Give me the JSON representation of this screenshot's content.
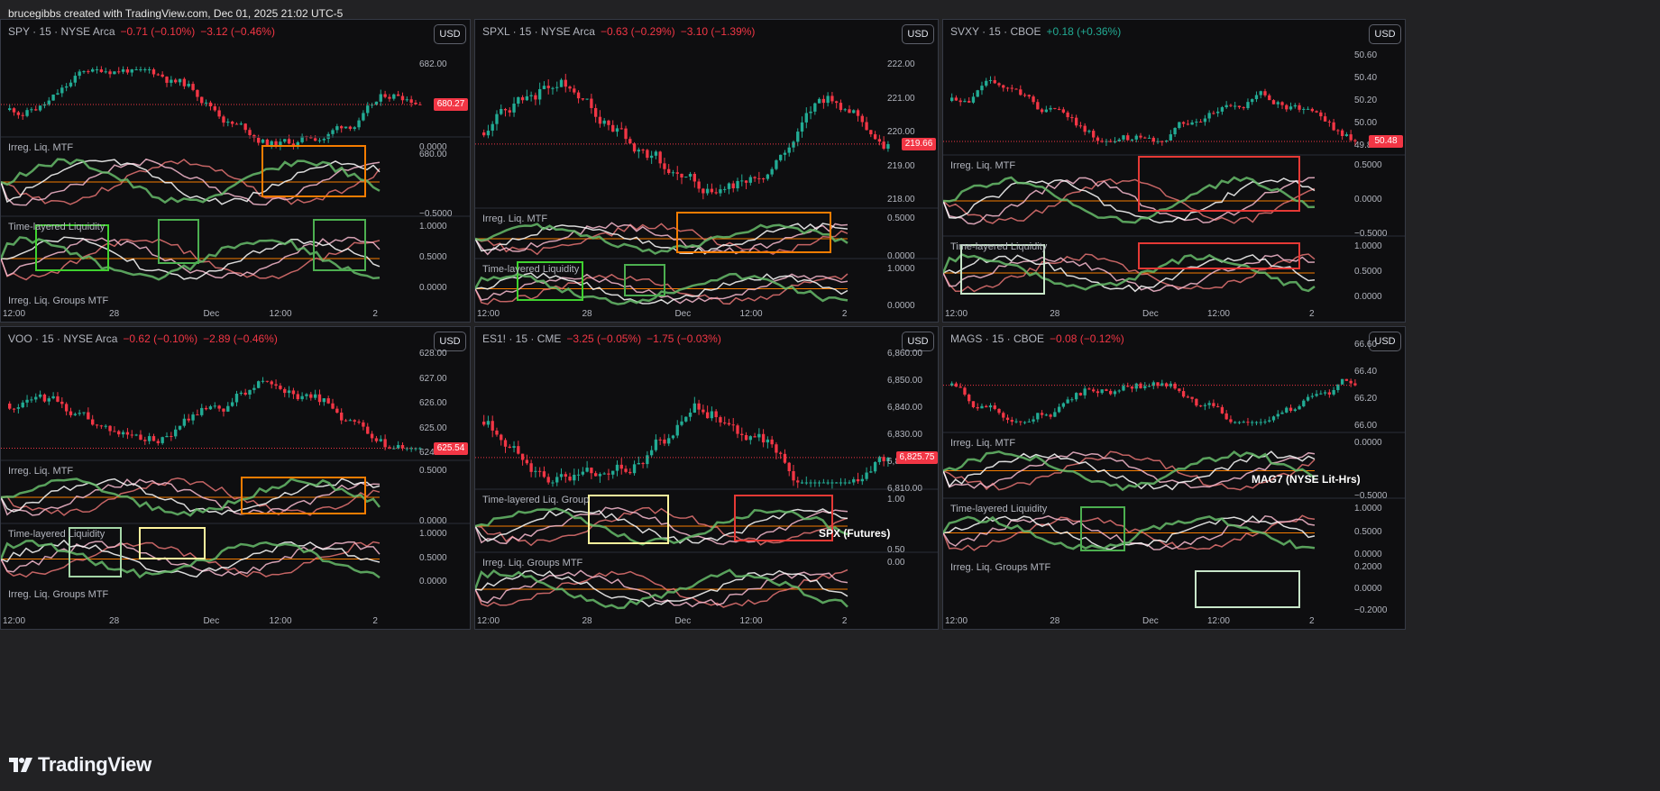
{
  "credit": "brucegibbs created with TradingView.com, Dec 01, 2025 21:02 UTC-5",
  "brand": "TradingView",
  "colors": {
    "down": "#f23645",
    "up": "#22ab94",
    "bg": "#0e0e10",
    "grid": "#2a2e39",
    "green": "#3fd22f",
    "red": "#e53935",
    "orange": "#f57c00",
    "yellow": "#fff59d"
  },
  "currency_label": "USD",
  "panels": [
    {
      "id": "spy",
      "symbol": "SPY · 15 · NYSE Arca",
      "chg1": "−0.71 (−0.10%)",
      "chg2": "−3.12 (−0.46%)",
      "chg1_sign": "neg",
      "chg2_sign": "neg",
      "price_label": "680.27",
      "price_color": "#f23645",
      "price_ticks": [
        "682.00",
        "680.00"
      ],
      "ind_labels": [
        "Irreg. Liq. MTF",
        "Time-layered Liquidity",
        "Irreg. Liq. Groups MTF"
      ],
      "ind_ticks": [
        [
          "0.0000",
          "−0.5000"
        ],
        [
          "1.0000",
          "0.5000",
          "0.0000"
        ]
      ],
      "annotation": "",
      "x_ticks": [
        "12:00",
        "28",
        "Dec",
        "12:00",
        "2"
      ],
      "trend": "up-then-down-late"
    },
    {
      "id": "spxl",
      "symbol": "SPXL · 15 · NYSE Arca",
      "chg1": "−0.63 (−0.29%)",
      "chg2": "−3.10 (−1.39%)",
      "chg1_sign": "neg",
      "chg2_sign": "neg",
      "price_label": "219.66",
      "price_color": "#f23645",
      "price_ticks": [
        "222.00",
        "221.00",
        "220.00",
        "219.00",
        "218.00"
      ],
      "ind_labels": [
        "Irreg. Liq. MTF",
        "Time-layered Liquidity"
      ],
      "ind_ticks": [
        [
          "0.5000",
          "0.0000"
        ],
        [
          "1.0000",
          "0.0000"
        ]
      ],
      "annotation": "",
      "x_ticks": [
        "12:00",
        "28",
        "Dec",
        "12:00",
        "2"
      ]
    },
    {
      "id": "svxy",
      "symbol": "SVXY · 15 · CBOE",
      "chg1": "+0.18 (+0.36%)",
      "chg2": "",
      "chg1_sign": "pos",
      "chg2_sign": "pos",
      "price_label": "50.48",
      "price_color": "#f23645",
      "price_ticks": [
        "50.60",
        "50.40",
        "50.20",
        "50.00",
        "49.80"
      ],
      "ind_labels": [
        "Irreg. Liq. MTF",
        "Time-layered Liquidity"
      ],
      "ind_ticks": [
        [
          "0.5000",
          "0.0000",
          "−0.5000"
        ],
        [
          "1.0000",
          "0.5000",
          "0.0000"
        ]
      ],
      "annotation": "",
      "x_ticks": [
        "12:00",
        "28",
        "Dec",
        "12:00",
        "2"
      ]
    },
    {
      "id": "voo",
      "symbol": "VOO · 15 · NYSE Arca",
      "chg1": "−0.62 (−0.10%)",
      "chg2": "−2.89 (−0.46%)",
      "chg1_sign": "neg",
      "chg2_sign": "neg",
      "price_label": "625.54",
      "price_color": "#f23645",
      "price_ticks": [
        "628.00",
        "627.00",
        "626.00",
        "625.00",
        "624.00"
      ],
      "ind_labels": [
        "Irreg. Liq. MTF",
        "Time-layered Liquidity",
        "Irreg. Liq. Groups MTF"
      ],
      "ind_ticks": [
        [
          "0.5000",
          "0.0000"
        ],
        [
          "1.0000",
          "0.5000",
          "0.0000"
        ]
      ],
      "annotation": "",
      "x_ticks": [
        "12:00",
        "28",
        "Dec",
        "12:00",
        "2"
      ]
    },
    {
      "id": "es1",
      "symbol": "ES1! · 15 · CME",
      "chg1": "−3.25 (−0.05%)",
      "chg2": "−1.75 (−0.03%)",
      "chg1_sign": "neg",
      "chg2_sign": "neg",
      "price_label": "6,825.75",
      "price_color": "#f23645",
      "price_ticks": [
        "6,860.00",
        "6,850.00",
        "6,840.00",
        "6,830.00",
        "6,820.00",
        "6,810.00"
      ],
      "ind_labels": [
        "Time-layered Liq. Group",
        "Irreg. Liq. Groups MTF"
      ],
      "ind_ticks": [
        [
          "1.00",
          "0.50"
        ],
        [
          "0.00"
        ]
      ],
      "annotation": "SPX (Futures)",
      "x_ticks": [
        "12:00",
        "28",
        "Dec",
        "12:00",
        "2"
      ]
    },
    {
      "id": "mags",
      "symbol": "MAGS · 15 · CBOE",
      "chg1": "−0.08 (−0.12%)",
      "chg2": "",
      "chg1_sign": "neg",
      "chg2_sign": "neg",
      "price_label": "",
      "price_color": "#f23645",
      "price_ticks": [
        "66.60",
        "66.40",
        "66.20",
        "66.00"
      ],
      "ind_labels": [
        "Irreg. Liq. MTF",
        "Time-layered Liquidity",
        "Irreg. Liq. Groups MTF"
      ],
      "ind_ticks": [
        [
          "0.0000",
          "−0.5000"
        ],
        [
          "1.0000",
          "0.5000",
          "0.0000"
        ],
        [
          "0.2000",
          "0.0000",
          "−0.2000"
        ]
      ],
      "annotation": "MAG7 (NYSE Lit-Hrs)",
      "x_ticks": [
        "12:00",
        "28",
        "Dec",
        "12:00",
        "2"
      ]
    }
  ]
}
